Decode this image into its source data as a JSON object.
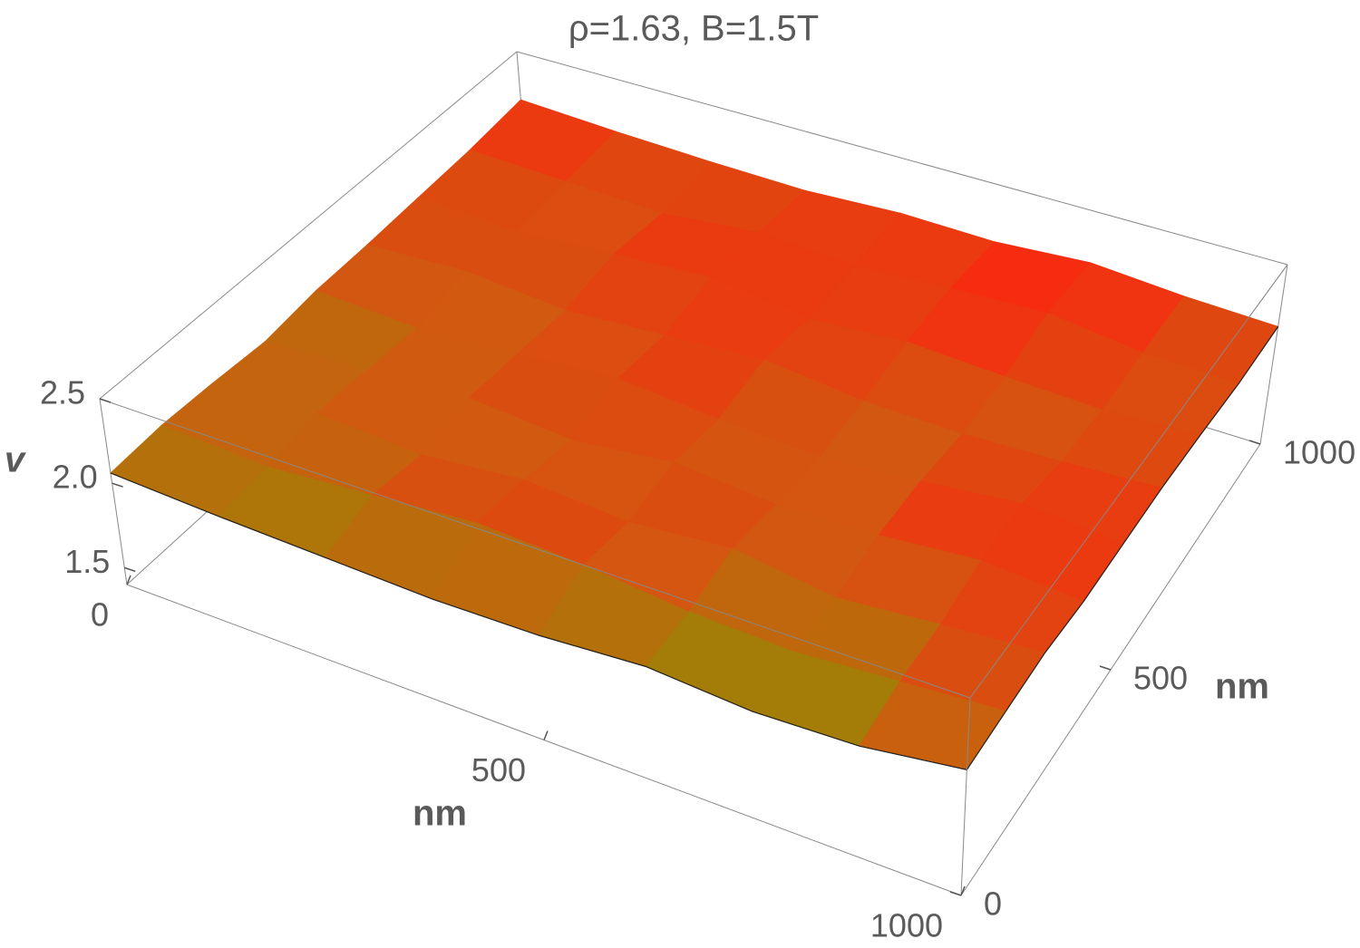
{
  "chart_data": {
    "type": "surface",
    "title": "ρ=1.63, B=1.5T",
    "x_label": "nm",
    "y_label": "nm",
    "z_label": "v",
    "x": [
      0,
      125,
      250,
      375,
      500,
      625,
      750,
      875,
      1000
    ],
    "y": [
      0,
      125,
      250,
      375,
      500,
      625,
      750,
      875,
      1000
    ],
    "z": [
      [
        2.06,
        2.03,
        2.01,
        1.99,
        2.0,
        2.04,
        2.0,
        2.02,
        2.1
      ],
      [
        2.08,
        2.05,
        2.1,
        2.15,
        2.12,
        2.06,
        2.04,
        2.08,
        2.12
      ],
      [
        2.07,
        2.1,
        2.06,
        2.12,
        2.08,
        2.13,
        2.05,
        2.1,
        2.14
      ],
      [
        2.05,
        2.08,
        2.12,
        2.07,
        2.14,
        2.09,
        2.11,
        2.16,
        2.12
      ],
      [
        2.09,
        2.06,
        2.1,
        2.15,
        2.1,
        2.07,
        2.12,
        2.18,
        2.13
      ],
      [
        2.1,
        2.13,
        2.08,
        2.12,
        2.16,
        2.1,
        2.09,
        2.11,
        2.14
      ],
      [
        2.12,
        2.09,
        2.14,
        2.18,
        2.11,
        2.15,
        2.12,
        2.1,
        2.13
      ],
      [
        2.14,
        2.12,
        2.1,
        2.16,
        2.13,
        2.17,
        2.19,
        2.12,
        2.11
      ],
      [
        2.18,
        2.15,
        2.13,
        2.12,
        2.15,
        2.14,
        2.18,
        2.14,
        2.12
      ]
    ],
    "colormap": [
      "#7f9a00",
      "#d05a10",
      "#ff2010"
    ],
    "xlim": [
      0,
      1000
    ],
    "ylim": [
      0,
      1000
    ],
    "zlim": [
      1.4,
      2.5
    ],
    "xticks": [
      0,
      500,
      1000
    ],
    "yticks": [
      0,
      500,
      1000
    ],
    "zticks": [
      1.5,
      {
        "value": 2,
        "label": "2.0"
      },
      2.5
    ]
  }
}
